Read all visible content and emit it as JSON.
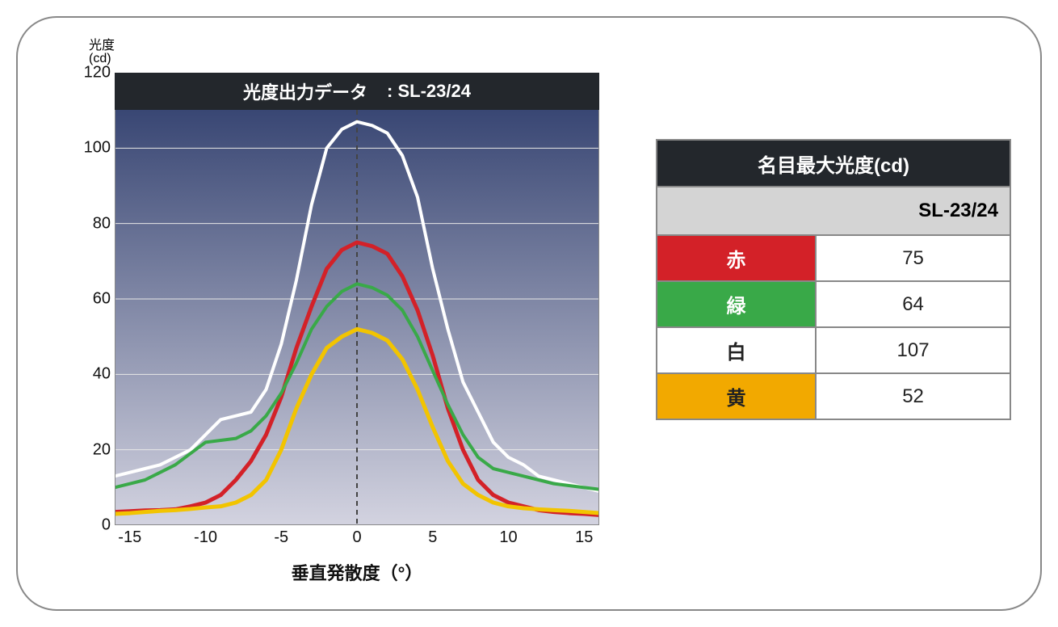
{
  "chart": {
    "type": "line",
    "title_prefix": "光度出力データ",
    "title_suffix": ": SL-23/24",
    "y_axis_label_1": "光度",
    "y_axis_label_2": "(cd)",
    "x_axis_label": "垂直発散度（°）",
    "background_gradient_top": "#2b3a6a",
    "background_gradient_bottom": "#d3d3e0",
    "title_bar_bg": "#23272c",
    "title_bar_color": "#ffffff",
    "grid_color": "#e8e8e8",
    "x_min": -16,
    "x_max": 16,
    "x_ticks": [
      -15,
      -10,
      -5,
      0,
      5,
      10,
      15
    ],
    "y_min": 0,
    "y_max": 120,
    "y_ticks": [
      0,
      20,
      40,
      60,
      80,
      100,
      120
    ],
    "centerline_x": 0,
    "centerline_color": "#444444",
    "x_values": [
      -16,
      -15,
      -14,
      -13,
      -12,
      -11,
      -10,
      -9,
      -8,
      -7,
      -6,
      -5,
      -4,
      -3,
      -2,
      -1,
      0,
      1,
      2,
      3,
      4,
      5,
      6,
      7,
      8,
      9,
      10,
      11,
      12,
      13,
      14,
      15,
      16
    ],
    "series": [
      {
        "name": "white",
        "color": "#ffffff",
        "width": 4,
        "values": [
          13,
          14,
          15,
          16,
          18,
          20,
          24,
          28,
          29,
          30,
          36,
          48,
          65,
          85,
          100,
          105,
          107,
          106,
          104,
          98,
          87,
          68,
          52,
          38,
          30,
          22,
          18,
          16,
          13,
          12,
          11,
          10,
          9
        ]
      },
      {
        "name": "red",
        "color": "#d32128",
        "width": 5,
        "values": [
          3.5,
          3.7,
          3.9,
          4,
          4.2,
          5,
          6,
          8,
          12,
          17,
          24,
          34,
          47,
          58,
          68,
          73,
          75,
          74,
          72,
          66,
          57,
          45,
          31,
          20,
          12,
          8,
          6,
          5,
          4,
          3.5,
          3.2,
          3,
          2.7
        ]
      },
      {
        "name": "green",
        "color": "#39a948",
        "width": 4,
        "values": [
          10,
          11,
          12,
          14,
          16,
          19,
          22,
          22.5,
          23,
          25,
          29,
          35,
          43,
          52,
          58,
          62,
          64,
          63,
          61,
          57,
          50,
          41,
          32,
          24,
          18,
          15,
          14,
          13,
          12,
          11,
          10.5,
          10,
          9.5
        ]
      },
      {
        "name": "yellow",
        "color": "#f2c400",
        "width": 5,
        "values": [
          3,
          3.2,
          3.5,
          3.8,
          4,
          4.3,
          4.7,
          5,
          6,
          8,
          12,
          20,
          31,
          40,
          47,
          50,
          52,
          51,
          49,
          44,
          36,
          26,
          17,
          11,
          8,
          6,
          5,
          4.5,
          4.2,
          4,
          3.8,
          3.5,
          3.2
        ]
      }
    ]
  },
  "table": {
    "header": "名目最大光度(cd)",
    "subheader": "SL-23/24",
    "header_bg": "#23272c",
    "header_color": "#ffffff",
    "subheader_bg": "#d4d4d4",
    "border_color": "#888888",
    "rows": [
      {
        "label": "赤",
        "bg": "#d32128",
        "text_color": "#ffffff",
        "value": "75"
      },
      {
        "label": "緑",
        "bg": "#39a948",
        "text_color": "#ffffff",
        "value": "64"
      },
      {
        "label": "白",
        "bg": "#ffffff",
        "text_color": "#222222",
        "value": "107"
      },
      {
        "label": "黄",
        "bg": "#f2a900",
        "text_color": "#222222",
        "value": "52"
      }
    ]
  }
}
